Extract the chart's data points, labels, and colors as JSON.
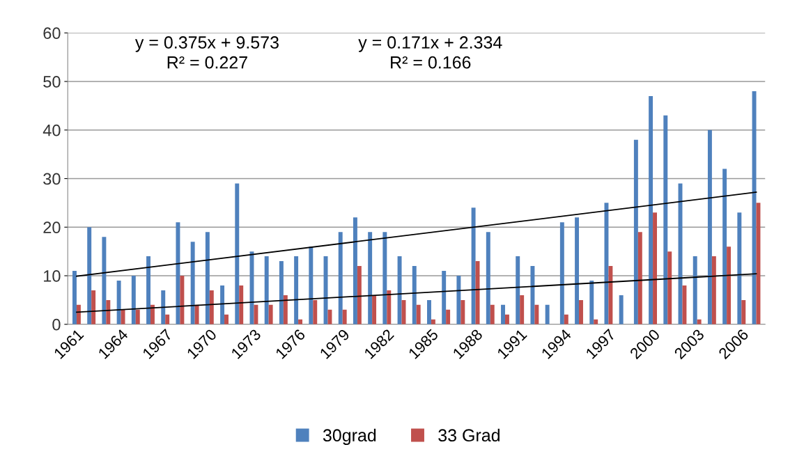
{
  "chart_data": {
    "type": "bar",
    "categories": [
      "1961",
      null,
      null,
      "1964",
      null,
      null,
      "1967",
      null,
      null,
      "1970",
      null,
      null,
      "1973",
      null,
      null,
      "1976",
      null,
      null,
      "1979",
      null,
      null,
      "1982",
      null,
      null,
      "1985",
      null,
      null,
      "1988",
      null,
      null,
      "1991",
      null,
      null,
      "1994",
      null,
      null,
      "1997",
      null,
      null,
      "2000",
      null,
      null,
      "2003",
      null,
      null,
      "2006",
      null
    ],
    "series": [
      {
        "name": "30grad",
        "color": "#4f81bd",
        "values": [
          11,
          20,
          18,
          9,
          10,
          14,
          7,
          21,
          17,
          19,
          8,
          29,
          15,
          14,
          13,
          14,
          16,
          14,
          19,
          22,
          19,
          19,
          14,
          12,
          5,
          11,
          10,
          24,
          19,
          4,
          14,
          12,
          4,
          21,
          22,
          9,
          25,
          6,
          38,
          47,
          43,
          29,
          14,
          40,
          32,
          23,
          48
        ]
      },
      {
        "name": "33 Grad",
        "color": "#c0504d",
        "values": [
          4,
          7,
          5,
          3,
          3,
          4,
          2,
          10,
          4,
          7,
          2,
          8,
          4,
          4,
          6,
          1,
          5,
          3,
          3,
          12,
          6,
          7,
          5,
          4,
          1,
          3,
          5,
          13,
          4,
          2,
          6,
          4,
          0,
          2,
          5,
          1,
          12,
          0,
          19,
          23,
          15,
          8,
          1,
          14,
          16,
          5,
          25
        ]
      },
      {
        "type": "line",
        "color": "#000000",
        "values": [
          9.9,
          null,
          null,
          null,
          null,
          null,
          null,
          null,
          null,
          null,
          null,
          null,
          null,
          null,
          null,
          null,
          null,
          null,
          null,
          null,
          null,
          null,
          null,
          null,
          null,
          null,
          null,
          null,
          null,
          null,
          null,
          null,
          null,
          null,
          null,
          null,
          null,
          null,
          null,
          null,
          null,
          null,
          null,
          null,
          null,
          null,
          27.2
        ]
      },
      {
        "type": "line",
        "color": "#000000",
        "values": [
          2.5,
          null,
          null,
          null,
          null,
          null,
          null,
          null,
          null,
          null,
          null,
          null,
          null,
          null,
          null,
          null,
          null,
          null,
          null,
          null,
          null,
          null,
          null,
          null,
          null,
          null,
          null,
          null,
          null,
          null,
          null,
          null,
          null,
          null,
          null,
          null,
          null,
          null,
          null,
          null,
          null,
          null,
          null,
          null,
          null,
          null,
          10.4
        ]
      }
    ],
    "ylim": [
      0,
      60
    ],
    "yticks": [
      0,
      10,
      20,
      30,
      40,
      50,
      60
    ],
    "grid": "y",
    "legend": "bottom",
    "annotations": [
      "y = 0.375x + 9.573\nR² = 0.227",
      "y = 0.171x + 2.334\nR² = 0.166"
    ]
  }
}
